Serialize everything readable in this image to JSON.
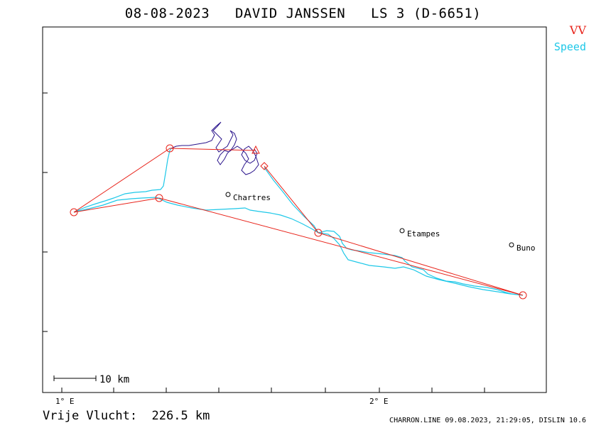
{
  "title": "08-08-2023   DAVID JANSSEN   LS 3 (D-6651)",
  "legend": {
    "vv": "VV",
    "speed": "Speed"
  },
  "axis": {
    "lon_ticks": [
      "1° E",
      "2° E"
    ]
  },
  "places": [
    {
      "name": "Chartres"
    },
    {
      "name": "Etampes"
    },
    {
      "name": "Buno"
    }
  ],
  "scale_bar": "10 km",
  "distance": "Vrije Vlucht:  226.5 km",
  "footer": "CHARRON.LINE 09.08.2023, 21:29:05, DISLIN 10.6",
  "colors": {
    "vv": "#e8231a",
    "speed": "#1ec8e8",
    "track": "#2a148c",
    "frame": "#000000"
  }
}
